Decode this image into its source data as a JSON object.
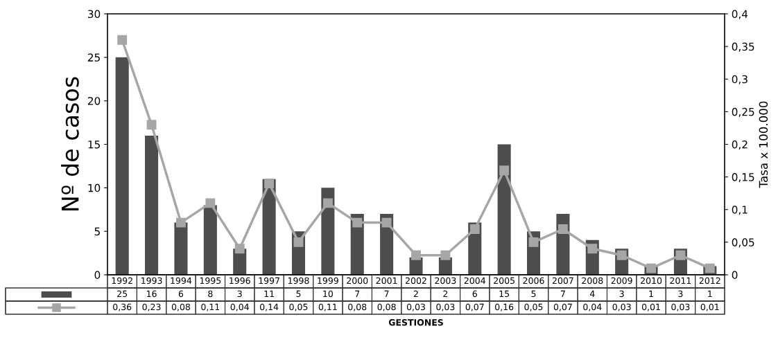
{
  "chart_data": {
    "type": "bar",
    "xlabel": "GESTIONES",
    "ylabel": "Nº de casos",
    "y2label": "Tasa x 100.000",
    "categories": [
      "1992",
      "1993",
      "1994",
      "1995",
      "1996",
      "1997",
      "1998",
      "1999",
      "2000",
      "2001",
      "2002",
      "2003",
      "2004",
      "2005",
      "2006",
      "2007",
      "2008",
      "2009",
      "2010",
      "2011",
      "2012"
    ],
    "series": [
      {
        "color": "#4d4d4d",
        "values": [
          25,
          16,
          6,
          8,
          3,
          11,
          5,
          10,
          7,
          7,
          2,
          2,
          6,
          15,
          5,
          7,
          4,
          3,
          1,
          3,
          1
        ]
      },
      {
        "type": "line",
        "axis": "y2",
        "color": "#a6a6a6",
        "marker": "square",
        "values": [
          0.36,
          0.23,
          0.08,
          0.11,
          0.04,
          0.14,
          0.05,
          0.11,
          0.08,
          0.08,
          0.03,
          0.03,
          0.07,
          0.16,
          0.05,
          0.07,
          0.04,
          0.03,
          0.01,
          0.03,
          0.01
        ],
        "value_labels": [
          "0,36",
          "0,23",
          "0,08",
          "0,11",
          "0,04",
          "0,14",
          "0,05",
          "0,11",
          "0,08",
          "0,08",
          "0,03",
          "0,03",
          "0,07",
          "0,16",
          "0,05",
          "0,07",
          "0,04",
          "0,03",
          "0,01",
          "0,03",
          "0,01"
        ]
      }
    ],
    "data_labels": true,
    "ylim": [
      0,
      30
    ],
    "yticks": [
      0,
      5,
      10,
      15,
      20,
      25,
      30
    ],
    "y2lim": [
      0,
      0.4
    ],
    "y2ticks": [
      {
        "value": 0,
        "label": "0"
      },
      {
        "value": 0.05,
        "label": "0,05"
      },
      {
        "value": 0.1,
        "label": "0,1"
      },
      {
        "value": 0.15,
        "label": "0,15"
      },
      {
        "value": 0.2,
        "label": "0,2"
      },
      {
        "value": 0.25,
        "label": "0,25"
      },
      {
        "value": 0.3,
        "label": "0,3"
      },
      {
        "value": 0.35,
        "label": "0,35"
      },
      {
        "value": 0.4,
        "label": "0,4"
      }
    ],
    "grid": false
  }
}
